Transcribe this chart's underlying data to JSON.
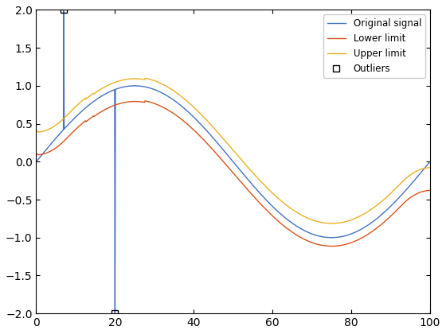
{
  "title": "",
  "xlim": [
    0,
    100
  ],
  "ylim": [
    -2,
    2
  ],
  "signal_color": "#4472C4",
  "lower_color": "#D95319",
  "upper_color": "#EDB120",
  "outlier_color": "#000000",
  "legend_labels": [
    "Original signal",
    "Lower limit",
    "Upper limit",
    "Outliers"
  ],
  "legend_loc": "upper right",
  "n_points": 1000,
  "spike_x": 7,
  "spike_high": 2.0,
  "spike_low_x": 20,
  "spike_low": -2.0,
  "signal_freq": 0.06283185307,
  "signal_phase": -1.2566370614,
  "lower_amp": 1.15,
  "lower_phase_shift": -5.0,
  "upper_amp": 1.15,
  "upper_phase_shift": 5.0,
  "figsize": [
    5.6,
    4.2
  ],
  "dpi": 100
}
